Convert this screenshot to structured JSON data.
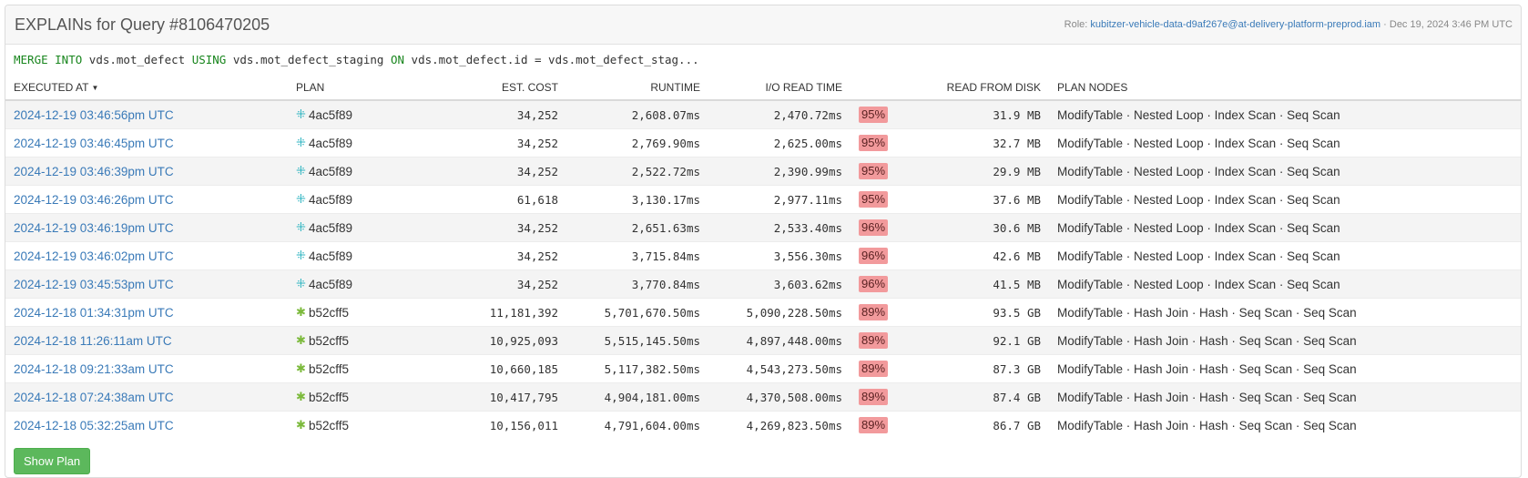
{
  "header": {
    "title": "EXPLAINs for Query #8106470205",
    "role_prefix": "Role: ",
    "role": "kubitzer-vehicle-data-d9af267e@at-delivery-platform-preprod.iam",
    "separator": " · ",
    "date": "Dec 19, 2024 3:46 PM UTC"
  },
  "query": {
    "parts": [
      {
        "text": "MERGE INTO",
        "kw": true
      },
      {
        "text": " vds.mot_defect ",
        "kw": false
      },
      {
        "text": "USING",
        "kw": true
      },
      {
        "text": " vds.mot_defect_staging ",
        "kw": false
      },
      {
        "text": "ON",
        "kw": true
      },
      {
        "text": " vds.mot_defect.id = vds.mot_defect_stag...",
        "kw": false
      }
    ]
  },
  "columns": {
    "executed_at": "EXECUTED AT",
    "plan": "PLAN",
    "est_cost": "EST. COST",
    "runtime": "RUNTIME",
    "io_read_time": "I/O READ TIME",
    "read_from_disk": "READ FROM DISK",
    "plan_nodes": "PLAN NODES"
  },
  "sort_caret": "▼",
  "rows": [
    {
      "executed_at": "2024-12-19 03:46:56pm UTC",
      "plan": "4ac5f89",
      "plan_icon": "⁜",
      "plan_color": "#2bb3c0",
      "est_cost": "34,252",
      "runtime": "2,608.07ms",
      "io_read_time": "2,470.72ms",
      "io_pct": "95%",
      "read_from_disk": "31.9 MB",
      "plan_nodes": "ModifyTable · Nested Loop · Index Scan · Seq Scan"
    },
    {
      "executed_at": "2024-12-19 03:46:45pm UTC",
      "plan": "4ac5f89",
      "plan_icon": "⁜",
      "plan_color": "#2bb3c0",
      "est_cost": "34,252",
      "runtime": "2,769.90ms",
      "io_read_time": "2,625.00ms",
      "io_pct": "95%",
      "read_from_disk": "32.7 MB",
      "plan_nodes": "ModifyTable · Nested Loop · Index Scan · Seq Scan"
    },
    {
      "executed_at": "2024-12-19 03:46:39pm UTC",
      "plan": "4ac5f89",
      "plan_icon": "⁜",
      "plan_color": "#2bb3c0",
      "est_cost": "34,252",
      "runtime": "2,522.72ms",
      "io_read_time": "2,390.99ms",
      "io_pct": "95%",
      "read_from_disk": "29.9 MB",
      "plan_nodes": "ModifyTable · Nested Loop · Index Scan · Seq Scan"
    },
    {
      "executed_at": "2024-12-19 03:46:26pm UTC",
      "plan": "4ac5f89",
      "plan_icon": "⁜",
      "plan_color": "#2bb3c0",
      "est_cost": "61,618",
      "runtime": "3,130.17ms",
      "io_read_time": "2,977.11ms",
      "io_pct": "95%",
      "read_from_disk": "37.6 MB",
      "plan_nodes": "ModifyTable · Nested Loop · Index Scan · Seq Scan"
    },
    {
      "executed_at": "2024-12-19 03:46:19pm UTC",
      "plan": "4ac5f89",
      "plan_icon": "⁜",
      "plan_color": "#2bb3c0",
      "est_cost": "34,252",
      "runtime": "2,651.63ms",
      "io_read_time": "2,533.40ms",
      "io_pct": "96%",
      "read_from_disk": "30.6 MB",
      "plan_nodes": "ModifyTable · Nested Loop · Index Scan · Seq Scan"
    },
    {
      "executed_at": "2024-12-19 03:46:02pm UTC",
      "plan": "4ac5f89",
      "plan_icon": "⁜",
      "plan_color": "#2bb3c0",
      "est_cost": "34,252",
      "runtime": "3,715.84ms",
      "io_read_time": "3,556.30ms",
      "io_pct": "96%",
      "read_from_disk": "42.6 MB",
      "plan_nodes": "ModifyTable · Nested Loop · Index Scan · Seq Scan"
    },
    {
      "executed_at": "2024-12-19 03:45:53pm UTC",
      "plan": "4ac5f89",
      "plan_icon": "⁜",
      "plan_color": "#2bb3c0",
      "est_cost": "34,252",
      "runtime": "3,770.84ms",
      "io_read_time": "3,603.62ms",
      "io_pct": "96%",
      "read_from_disk": "41.5 MB",
      "plan_nodes": "ModifyTable · Nested Loop · Index Scan · Seq Scan"
    },
    {
      "executed_at": "2024-12-18 01:34:31pm UTC",
      "plan": "b52cff5",
      "plan_icon": "✱",
      "plan_color": "#7cba3c",
      "est_cost": "11,181,392",
      "runtime": "5,701,670.50ms",
      "io_read_time": "5,090,228.50ms",
      "io_pct": "89%",
      "read_from_disk": "93.5 GB",
      "plan_nodes": "ModifyTable · Hash Join · Hash · Seq Scan · Seq Scan"
    },
    {
      "executed_at": "2024-12-18 11:26:11am UTC",
      "plan": "b52cff5",
      "plan_icon": "✱",
      "plan_color": "#7cba3c",
      "est_cost": "10,925,093",
      "runtime": "5,515,145.50ms",
      "io_read_time": "4,897,448.00ms",
      "io_pct": "89%",
      "read_from_disk": "92.1 GB",
      "plan_nodes": "ModifyTable · Hash Join · Hash · Seq Scan · Seq Scan"
    },
    {
      "executed_at": "2024-12-18 09:21:33am UTC",
      "plan": "b52cff5",
      "plan_icon": "✱",
      "plan_color": "#7cba3c",
      "est_cost": "10,660,185",
      "runtime": "5,117,382.50ms",
      "io_read_time": "4,543,273.50ms",
      "io_pct": "89%",
      "read_from_disk": "87.3 GB",
      "plan_nodes": "ModifyTable · Hash Join · Hash · Seq Scan · Seq Scan"
    },
    {
      "executed_at": "2024-12-18 07:24:38am UTC",
      "plan": "b52cff5",
      "plan_icon": "✱",
      "plan_color": "#7cba3c",
      "est_cost": "10,417,795",
      "runtime": "4,904,181.00ms",
      "io_read_time": "4,370,508.00ms",
      "io_pct": "89%",
      "read_from_disk": "87.4 GB",
      "plan_nodes": "ModifyTable · Hash Join · Hash · Seq Scan · Seq Scan"
    },
    {
      "executed_at": "2024-12-18 05:32:25am UTC",
      "plan": "b52cff5",
      "plan_icon": "✱",
      "plan_color": "#7cba3c",
      "est_cost": "10,156,011",
      "runtime": "4,791,604.00ms",
      "io_read_time": "4,269,823.50ms",
      "io_pct": "89%",
      "read_from_disk": "86.7 GB",
      "plan_nodes": "ModifyTable · Hash Join · Hash · Seq Scan · Seq Scan"
    }
  ],
  "footer": {
    "show_plan_label": "Show Plan"
  }
}
